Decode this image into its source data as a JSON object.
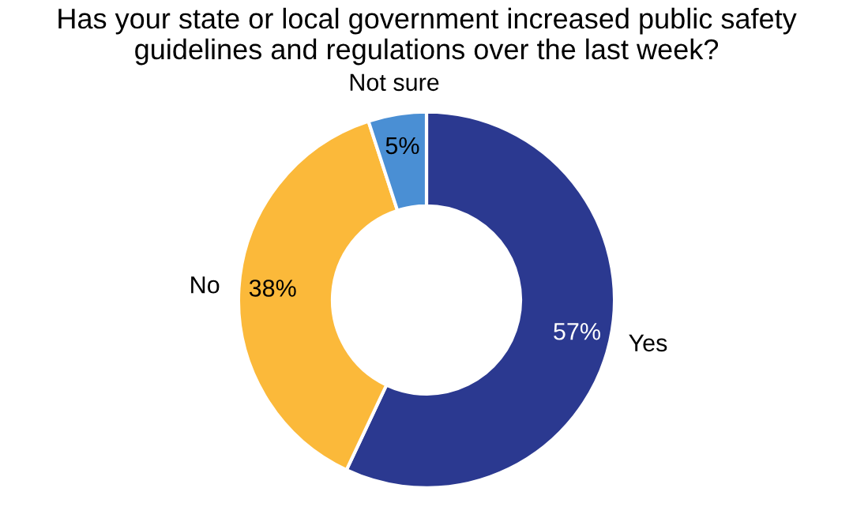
{
  "chart_data": {
    "type": "donut",
    "title": "Has your state or local government increased public safety guidelines and regulations over the last week?",
    "categories": [
      "Yes",
      "No",
      "Not sure"
    ],
    "values": [
      57,
      38,
      5
    ],
    "colors": [
      "#2b3990",
      "#fbb93a",
      "#4a8fd4"
    ],
    "value_labels": [
      "57%",
      "38%",
      "5%"
    ],
    "legend": false
  }
}
